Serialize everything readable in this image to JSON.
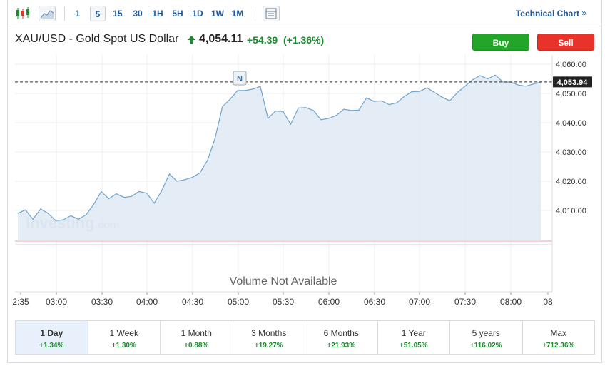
{
  "toolbar": {
    "timeframes": [
      "1",
      "5",
      "15",
      "30",
      "1H",
      "5H",
      "1D",
      "1W",
      "1M"
    ],
    "active_timeframe": "5",
    "technical_chart_label": "Technical Chart",
    "technical_chart_chevron": "»",
    "icons": [
      "candlestick-icon",
      "area-chart-icon",
      "layout-icon"
    ]
  },
  "instrument": {
    "name": "XAU/USD - Gold Spot US Dollar",
    "price": "4,054.11",
    "change": "+54.39",
    "change_pct": "(+1.36%)",
    "direction_icon": "up-arrow-icon"
  },
  "actions": {
    "buy_label": "Buy",
    "sell_label": "Sell"
  },
  "chart_data": {
    "type": "area",
    "x_ticks": [
      "2:35",
      "03:00",
      "03:30",
      "04:00",
      "04:30",
      "05:00",
      "05:30",
      "06:00",
      "06:30",
      "07:00",
      "07:30",
      "08:00",
      "08"
    ],
    "y_ticks": [
      "4,060.00",
      "4,050.00",
      "4,040.00",
      "4,030.00",
      "4,020.00",
      "4,010.00"
    ],
    "y_range": [
      4000.2,
      4062.0
    ],
    "current_price_label": "4,053.94",
    "current_price": 4053.94,
    "volume_note": "Volume Not Available",
    "watermark": "Investing.com",
    "news_marker": "N",
    "series": [
      {
        "values": [
          4009.0,
          4010.2,
          4007.0,
          4010.5,
          4009.0,
          4006.5,
          4006.8,
          4008.2,
          4007.0,
          4008.5,
          4012.0,
          4016.5,
          4014.0,
          4015.7,
          4014.5,
          4014.8,
          4016.5,
          4015.9,
          4012.5,
          4016.8,
          4022.5,
          4020.0,
          4020.5,
          4021.3,
          4022.8,
          4027.0,
          4034.5,
          4045.5,
          4048.0,
          4051.0,
          4051.0,
          4051.5,
          4052.4,
          4041.5,
          4044.0,
          4043.8,
          4039.5,
          4045.0,
          4045.2,
          4044.2,
          4041.0,
          4041.5,
          4042.5,
          4044.6,
          4044.2,
          4044.3,
          4048.5,
          4047.3,
          4047.5,
          4046.2,
          4046.8,
          4049.0,
          4050.6,
          4050.7,
          4051.9,
          4050.3,
          4048.7,
          4047.5,
          4050.3,
          4052.5,
          4054.7,
          4056.1,
          4055.0,
          4056.3,
          4053.9,
          4053.9,
          4052.9,
          4052.5,
          4053.2,
          4053.9
        ]
      }
    ]
  },
  "periods": [
    {
      "label": "1 Day",
      "change": "+1.34%",
      "active": true
    },
    {
      "label": "1 Week",
      "change": "+1.30%"
    },
    {
      "label": "1 Month",
      "change": "+0.88%"
    },
    {
      "label": "3 Months",
      "change": "+19.27%"
    },
    {
      "label": "6 Months",
      "change": "+21.93%"
    },
    {
      "label": "1 Year",
      "change": "+51.05%"
    },
    {
      "label": "5 years",
      "change": "+116.02%"
    },
    {
      "label": "Max",
      "change": "+712.36%"
    }
  ],
  "colors": {
    "line": "#6fa3cc",
    "area_fill": "#dfe9f3",
    "positive": "#1b8c2e",
    "link": "#1e5a9c",
    "buy": "#22a528",
    "sell": "#e8332a"
  }
}
